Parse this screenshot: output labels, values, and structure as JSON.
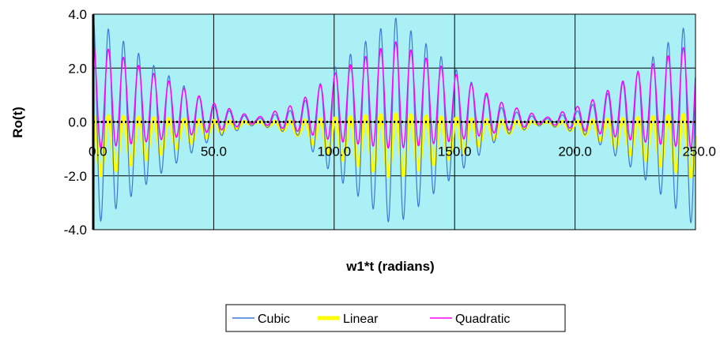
{
  "chart_data": {
    "type": "line",
    "title": "",
    "xlabel": "w1*t (radians)",
    "ylabel": "Ro(t)",
    "xlim": [
      0,
      250
    ],
    "ylim": [
      -4,
      4
    ],
    "x_ticks": [
      "0.0",
      "50.0",
      "100.0",
      "150.0",
      "200.0",
      "250.0"
    ],
    "y_ticks": [
      "4.0",
      "2.0",
      "0.0",
      "-2.0",
      "-4.0"
    ],
    "grid": true,
    "legend_position": "bottom",
    "plot_background": "#aaf0f5",
    "carrier_period_radians": 6.28,
    "envelope_zero_points": [
      0,
      67.5,
      125,
      187.5,
      250
    ],
    "series": [
      {
        "name": "Cubic",
        "color": "#3b78d8",
        "form": "oscillation with beat envelope, symmetric about 0",
        "envelope_x": [
          0,
          25,
          50,
          67.5,
          85,
          100,
          125,
          150,
          170,
          187.5,
          205,
          225,
          250
        ],
        "peak_upper": [
          3.9,
          2.1,
          0.6,
          0.1,
          0.5,
          2.0,
          3.9,
          2.0,
          0.5,
          0.1,
          0.5,
          1.8,
          3.9
        ],
        "peak_lower": [
          -3.9,
          -2.1,
          -0.6,
          -0.1,
          -0.5,
          -2.0,
          -3.9,
          -2.0,
          -0.5,
          -0.1,
          -0.5,
          -1.8,
          -3.9
        ]
      },
      {
        "name": "Linear",
        "color": "#ffff00",
        "form": "oscillation with beat envelope, mostly below 0",
        "envelope_x": [
          0,
          25,
          50,
          67.5,
          85,
          100,
          125,
          150,
          170,
          187.5,
          205,
          225,
          250
        ],
        "peak_upper": [
          0.25,
          0.15,
          0.05,
          0.0,
          0.05,
          0.15,
          0.3,
          0.15,
          0.05,
          0.0,
          0.05,
          0.15,
          0.3
        ],
        "peak_lower": [
          -2.1,
          -1.3,
          -0.5,
          -0.05,
          -0.5,
          -1.3,
          -2.1,
          -1.3,
          -0.5,
          -0.05,
          -0.5,
          -1.3,
          -2.1
        ]
      },
      {
        "name": "Quadratic",
        "color": "#ff00ff",
        "form": "oscillation with beat envelope, mostly above 0",
        "envelope_x": [
          0,
          25,
          50,
          67.5,
          85,
          100,
          125,
          150,
          170,
          187.5,
          205,
          225,
          250
        ],
        "peak_upper": [
          3.0,
          1.8,
          0.7,
          0.15,
          0.7,
          1.8,
          3.0,
          1.8,
          0.7,
          0.15,
          0.7,
          1.8,
          3.0
        ],
        "peak_lower": [
          -1.0,
          -0.7,
          -0.35,
          -0.05,
          -0.35,
          -0.7,
          -1.0,
          -0.7,
          -0.35,
          -0.05,
          -0.35,
          -0.7,
          -1.0
        ]
      }
    ],
    "zero_line": {
      "style": "dotted",
      "color": "#000000"
    }
  }
}
